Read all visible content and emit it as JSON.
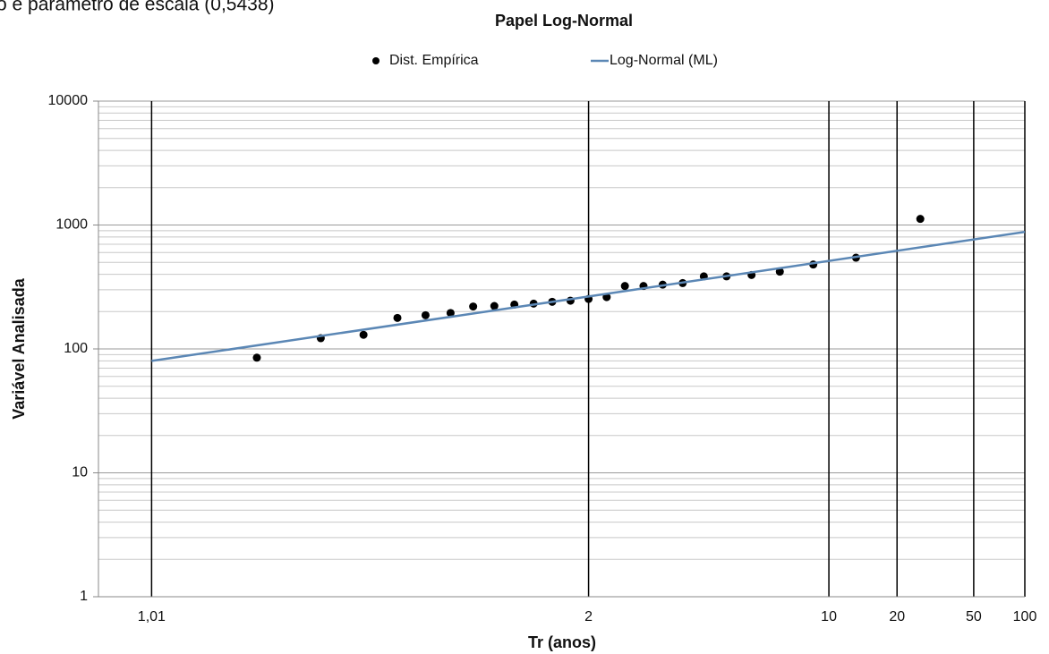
{
  "chart_data": {
    "type": "scatter",
    "annotation": "o e parâmetro de escala (0,5438)",
    "title": "Papel Log-Normal",
    "x_label": "Tr (anos)",
    "y_label": "Variável Analisada",
    "x_scale": "normal-probability",
    "y_scale": "log",
    "grid": true,
    "minor_grid": true,
    "legend": "top",
    "xlim": [
      1.0045,
      100
    ],
    "ylim": [
      1,
      10000
    ],
    "xticks": [
      {
        "value": 1.01,
        "label": "1,01"
      },
      2,
      10,
      20,
      50,
      100
    ],
    "yticks": [
      1,
      10,
      100,
      1000,
      10000
    ],
    "series": [
      {
        "name": "Dist. Empírica",
        "kind": "markers",
        "color": "#000000",
        "x": [
          1.04,
          1.083,
          1.13,
          1.182,
          1.238,
          1.3,
          1.368,
          1.444,
          1.529,
          1.625,
          1.733,
          1.857,
          2,
          2.167,
          2.364,
          2.6,
          2.889,
          3.25,
          3.714,
          4.333,
          5.2,
          6.5,
          8.667,
          13,
          26
        ],
        "values": [
          85,
          122,
          130,
          178,
          187,
          195,
          220,
          222,
          228,
          232,
          240,
          245,
          253,
          262,
          322,
          322,
          330,
          340,
          385,
          385,
          395,
          420,
          480,
          545,
          1120
        ]
      },
      {
        "name": "Log-Normal (ML)",
        "kind": "line",
        "color": "#5b87b5",
        "x": [
          1.01,
          2,
          100
        ],
        "values": [
          80,
          265,
          880
        ]
      }
    ]
  }
}
